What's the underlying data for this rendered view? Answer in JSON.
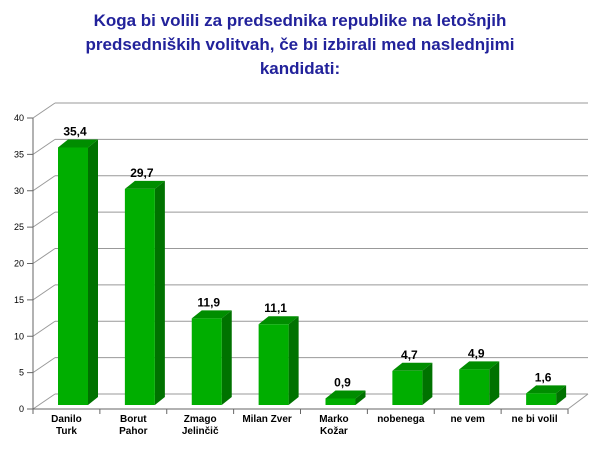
{
  "title": {
    "text": "Koga bi volili za predsednika republike na letošnjih predsedniških volitvah, če bi izbirali med naslednjimi kandidati:",
    "lines": [
      "Koga bi volili za predsednika republike na letošnjih",
      "predsedniških volitvah, če bi izbirali med naslednjimi",
      "kandidati:"
    ],
    "color": "#22229B"
  },
  "chart_data": {
    "type": "bar",
    "style": "3d-column",
    "title": "Koga bi volili za predsednika republike na letošnjih predsedniških volitvah, če bi izbirali med naslednjimi kandidati:",
    "categories": [
      "Danilo Turk",
      "Borut Pahor",
      "Zmago Jelinčič",
      "Milan Zver",
      "Marko Kožar",
      "nobenega",
      "ne vem",
      "ne bi volil"
    ],
    "category_label_lines": [
      [
        "Danilo",
        "Turk"
      ],
      [
        "Borut",
        "Pahor"
      ],
      [
        "Zmago",
        "Jelinčič"
      ],
      [
        "Milan Zver"
      ],
      [
        "Marko",
        "Kožar"
      ],
      [
        "nobenega"
      ],
      [
        "ne vem"
      ],
      [
        "ne bi volil"
      ]
    ],
    "values": [
      35.4,
      29.7,
      11.9,
      11.1,
      0.9,
      4.7,
      4.9,
      1.6
    ],
    "value_labels": [
      "35,4",
      "29,7",
      "11,9",
      "11,1",
      "0,9",
      "4,7",
      "4,9",
      "1,6"
    ],
    "xlabel": "",
    "ylabel": "",
    "ylim": [
      0,
      40
    ],
    "ytick_step": 5,
    "ytick_labels": [
      "0",
      "5",
      "10",
      "15",
      "20",
      "25",
      "30",
      "35",
      "40"
    ],
    "grid": true,
    "legend": false,
    "colors": {
      "bar_front": "#00AE00",
      "bar_top": "#008D00",
      "bar_side": "#007200",
      "gridline": "#999999",
      "axis": "#666666",
      "label": "#000000"
    }
  }
}
